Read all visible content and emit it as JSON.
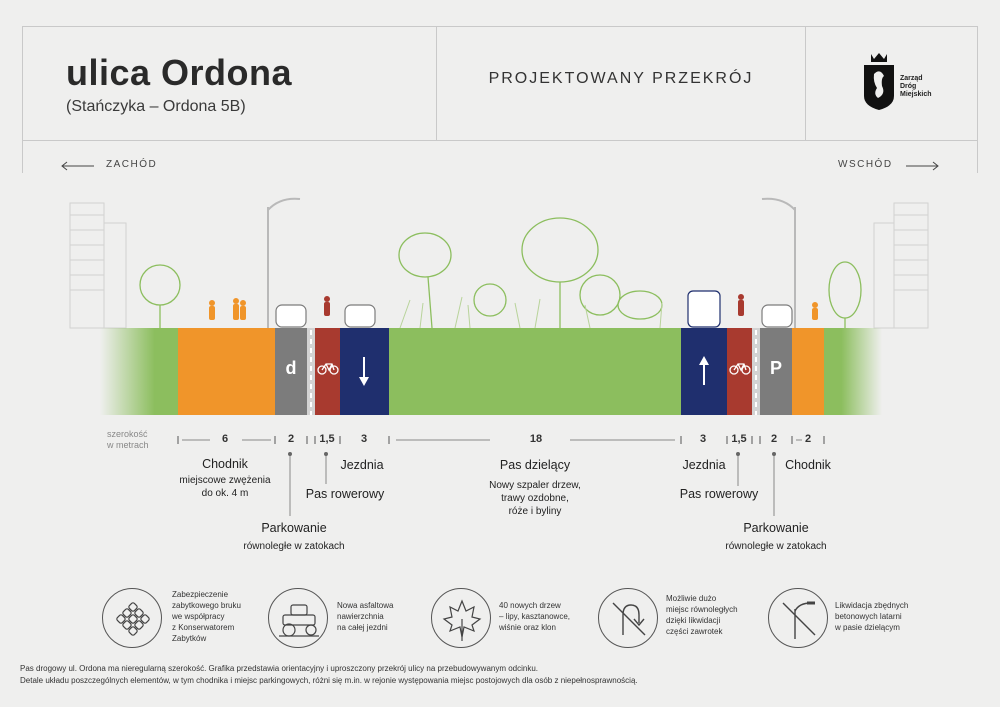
{
  "header": {
    "title": "ulica Ordona",
    "subtitle": "(Stańczyka – Ordona 5B)",
    "project_label": "PROJEKTOWANY PRZEKRÓJ",
    "logo_text": [
      "Zarząd",
      "Dróg",
      "Miejskich"
    ]
  },
  "directions": {
    "west": "ZACHÓD",
    "east": "WSCHÓD"
  },
  "section": {
    "colors": {
      "green": "#8cbe5e",
      "orange": "#f0952a",
      "grey": "#7c7c7c",
      "red": "#a83a2f",
      "blue": "#1f2f6e",
      "light_grey": "#d3d3d3"
    },
    "badges": {
      "left_parking": "d",
      "right_parking": "P"
    },
    "scale_label": [
      "szerokość",
      "w metrach"
    ],
    "dimensions": [
      "6",
      "2",
      "1,5",
      "3",
      "18",
      "3",
      "1,5",
      "2",
      "2"
    ]
  },
  "labels": {
    "chodnik_left": "Chodnik",
    "chodnik_left_note": [
      "miejscowe zwężenia",
      "do ok. 4 m"
    ],
    "parkowanie_left": "Parkowanie",
    "parkowanie_left_note": "równoległe w zatokach",
    "pas_rowerowy_left": "Pas rowerowy",
    "jezdnia_left": "Jezdnia",
    "pas_dzielacy": "Pas dzielący",
    "pas_dzielacy_note": [
      "Nowy szpaler drzew,",
      "trawy ozdobne,",
      "róże i byliny"
    ],
    "jezdnia_right": "Jezdnia",
    "pas_rowerowy_right": "Pas rowerowy",
    "parkowanie_right": "Parkowanie",
    "parkowanie_right_note": "równoległe w zatokach",
    "chodnik_right": "Chodnik"
  },
  "features": [
    {
      "icon": "paving-stones-icon",
      "lines": [
        "Zabezpieczenie",
        "zabytkowego bruku",
        "we współpracy",
        "z Konserwatorem",
        "Zabytków"
      ]
    },
    {
      "icon": "road-roller-icon",
      "lines": [
        "Nowa asfaltowa",
        "nawierzchnia",
        "na całej jezdni"
      ]
    },
    {
      "icon": "leaf-icon",
      "lines": [
        "40 nowych drzew",
        "– lipy, kasztanowce,",
        "wiśnie oraz klon"
      ]
    },
    {
      "icon": "no-u-turn-icon",
      "lines": [
        "Możliwie dużo",
        "miejsc równoległych",
        "dzięki likwidacji",
        "części zawrotek"
      ]
    },
    {
      "icon": "no-streetlamp-icon",
      "lines": [
        "Likwidacja zbędnych",
        "betonowych latarni",
        "w pasie dzielącym"
      ]
    }
  ],
  "footnotes": [
    "Pas drogowy ul. Ordona ma nieregularną szerokość. Grafika przedstawia orientacyjny i uproszczony przekrój ulicy na przebudowywanym odcinku.",
    "Detale układu poszczególnych elementów, w tym chodnika i miejsc parkingowych, różni się m.in. w rejonie występowania miejsc postojowych dla osób z niepełnosprawnością."
  ]
}
